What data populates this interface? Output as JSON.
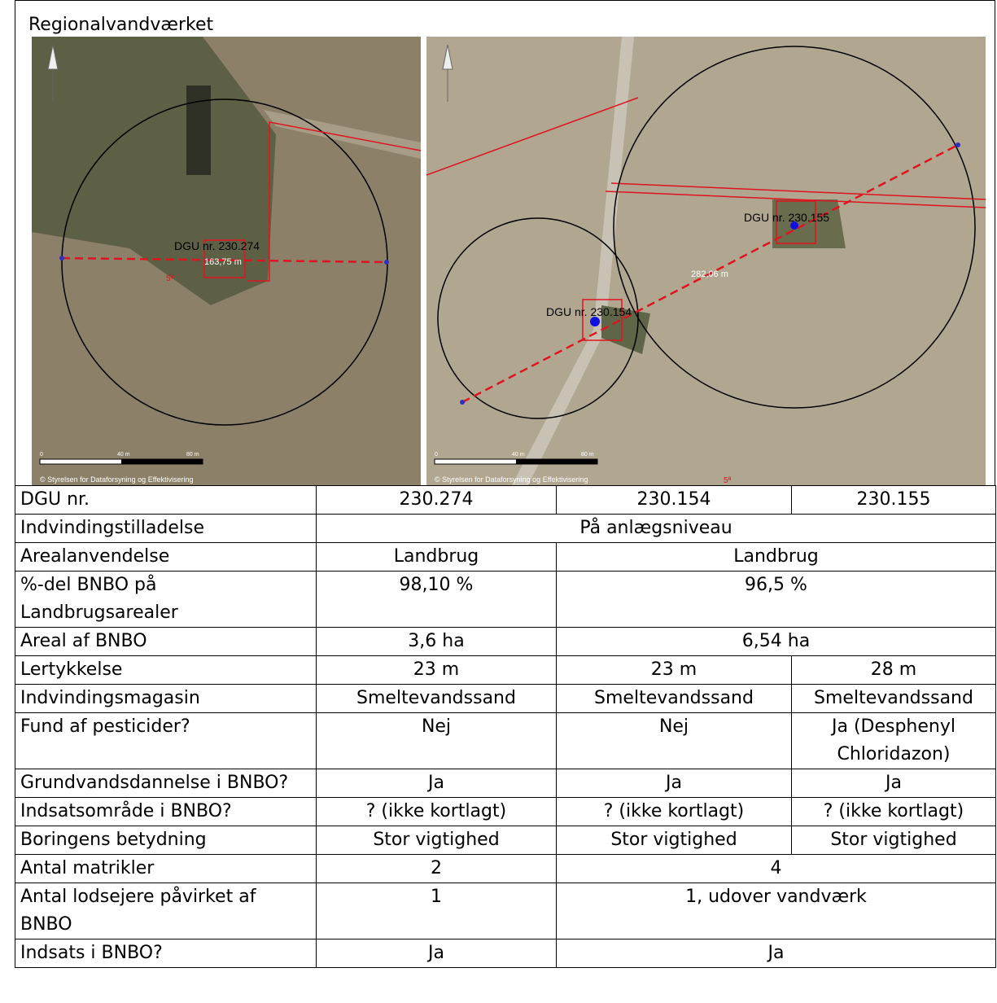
{
  "header": {
    "title": "Regionalvandværket"
  },
  "maps": [
    {
      "labels": [
        "DGU nr. 230.274",
        "163,75 m"
      ],
      "scale": [
        "0",
        "40 m",
        "80 m"
      ],
      "credit": "© Styrelsen for Dataforsyning og Effektivisering",
      "marker": "5ª"
    },
    {
      "labels": [
        "DGU nr. 230.154",
        "DGU nr. 230.155",
        "282,06 m"
      ],
      "scale": [
        "0",
        "40 m",
        "80 m"
      ],
      "credit": "© Styrelsen for Dataforsyning og Effektivisering",
      "marker": "5ª"
    }
  ],
  "table": {
    "rows": [
      [
        "DGU nr.",
        "230.274",
        "230.154",
        "230.155"
      ],
      [
        "Indvindingstilladelse",
        "På anlægsniveau"
      ],
      [
        "Arealanvendelse",
        "Landbrug",
        "Landbrug"
      ],
      [
        "%-del BNBO på Landbrugsarealer",
        "98,10 %",
        "96,5 %"
      ],
      [
        "Areal af BNBO",
        "3,6 ha",
        "6,54 ha"
      ],
      [
        "Lertykkelse",
        "23 m",
        "23 m",
        "28 m"
      ],
      [
        "Indvindingsmagasin",
        "Smeltevandssand",
        "Smeltevandssand",
        "Smeltevandssand"
      ],
      [
        "Fund af pesticider?",
        "Nej",
        "Nej",
        "Ja (Desphenyl Chloridazon)"
      ],
      [
        "Grundvandsdannelse i BNBO?",
        "Ja",
        "Ja",
        "Ja"
      ],
      [
        "Indsatsområde i BNBO?",
        "? (ikke kortlagt)",
        "? (ikke kortlagt)",
        "? (ikke kortlagt)"
      ],
      [
        "Boringens betydning",
        "Stor vigtighed",
        "Stor vigtighed",
        "Stor vigtighed"
      ],
      [
        "Antal matrikler",
        "2",
        "4"
      ],
      [
        "Antal lodsejere påvirket af BNBO",
        "1",
        "1, udover vandværk"
      ],
      [
        "Indsats i BNBO?",
        "Ja",
        "Ja"
      ]
    ]
  }
}
